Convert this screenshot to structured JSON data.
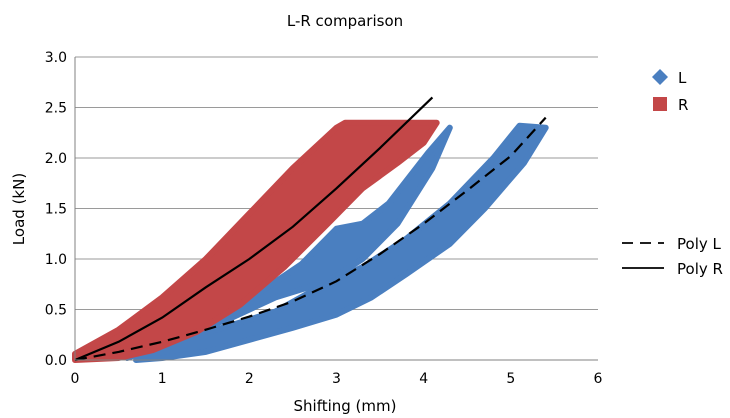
{
  "chart_data": {
    "type": "scatter",
    "title": "L-R comparison",
    "xlabel": "Shifting (mm)",
    "ylabel": "Load (kN)",
    "xlim": [
      0,
      6
    ],
    "ylim": [
      0,
      3
    ],
    "x_ticks": [
      "0",
      "1",
      "2",
      "3",
      "4",
      "5",
      "6"
    ],
    "y_ticks": [
      "0.0",
      "0.5",
      "1.0",
      "1.5",
      "2.0",
      "2.5",
      "3.0"
    ],
    "grid": "horizontal",
    "legend_placement": "right",
    "series": [
      {
        "name": "L",
        "kind": "scatter",
        "marker": "diamond",
        "color": "#4a7fc0",
        "bands": [
          {
            "upper": [
              [
                0.6,
                0.05
              ],
              [
                1.2,
                0.22
              ],
              [
                1.8,
                0.42
              ],
              [
                2.3,
                0.62
              ],
              [
                2.9,
                0.78
              ],
              [
                3.3,
                1.0
              ],
              [
                3.7,
                1.35
              ],
              [
                4.1,
                1.9
              ],
              [
                4.3,
                2.3
              ]
            ],
            "lower": [
              [
                4.3,
                2.3
              ],
              [
                4.05,
                2.05
              ],
              [
                3.6,
                1.55
              ],
              [
                3.3,
                1.35
              ],
              [
                3.0,
                1.3
              ],
              [
                2.6,
                0.95
              ],
              [
                2.0,
                0.6
              ],
              [
                1.5,
                0.38
              ],
              [
                1.0,
                0.15
              ],
              [
                0.6,
                0.02
              ]
            ]
          },
          {
            "upper": [
              [
                1.0,
                0.18
              ],
              [
                1.7,
                0.32
              ],
              [
                2.3,
                0.48
              ],
              [
                2.8,
                0.72
              ],
              [
                3.3,
                0.92
              ],
              [
                3.8,
                1.2
              ],
              [
                4.3,
                1.55
              ],
              [
                4.8,
                2.0
              ],
              [
                5.1,
                2.32
              ],
              [
                5.4,
                2.3
              ]
            ],
            "lower": [
              [
                5.4,
                2.3
              ],
              [
                5.15,
                1.95
              ],
              [
                4.7,
                1.5
              ],
              [
                4.3,
                1.15
              ],
              [
                3.8,
                0.85
              ],
              [
                3.4,
                0.62
              ],
              [
                3.0,
                0.45
              ],
              [
                2.5,
                0.32
              ],
              [
                2.0,
                0.2
              ],
              [
                1.5,
                0.08
              ],
              [
                1.0,
                0.02
              ],
              [
                0.7,
                0.0
              ]
            ]
          }
        ]
      },
      {
        "name": "R",
        "kind": "scatter",
        "marker": "square",
        "color": "#c34748",
        "bands": [
          {
            "upper": [
              [
                0.0,
                0.06
              ],
              [
                0.5,
                0.3
              ],
              [
                1.0,
                0.62
              ],
              [
                1.5,
                1.0
              ],
              [
                2.0,
                1.45
              ],
              [
                2.5,
                1.9
              ],
              [
                3.0,
                2.3
              ],
              [
                3.1,
                2.35
              ],
              [
                4.15,
                2.35
              ]
            ],
            "lower": [
              [
                4.15,
                2.35
              ],
              [
                4.0,
                2.15
              ],
              [
                3.7,
                1.95
              ],
              [
                3.3,
                1.7
              ],
              [
                2.9,
                1.35
              ],
              [
                2.4,
                0.92
              ],
              [
                1.9,
                0.55
              ],
              [
                1.4,
                0.28
              ],
              [
                0.9,
                0.1
              ],
              [
                0.5,
                0.02
              ],
              [
                0.0,
                0.0
              ]
            ]
          }
        ]
      },
      {
        "name": "Poly L",
        "kind": "line",
        "dash": true,
        "color": "#000000",
        "points": [
          [
            0.0,
            0.0
          ],
          [
            0.5,
            0.08
          ],
          [
            1.0,
            0.18
          ],
          [
            1.5,
            0.3
          ],
          [
            2.0,
            0.43
          ],
          [
            2.5,
            0.58
          ],
          [
            3.0,
            0.78
          ],
          [
            3.5,
            1.05
          ],
          [
            4.0,
            1.35
          ],
          [
            4.5,
            1.68
          ],
          [
            5.0,
            2.02
          ],
          [
            5.4,
            2.4
          ]
        ]
      },
      {
        "name": "Poly R",
        "kind": "line",
        "dash": false,
        "color": "#000000",
        "points": [
          [
            0.0,
            0.0
          ],
          [
            0.5,
            0.18
          ],
          [
            1.0,
            0.42
          ],
          [
            1.5,
            0.72
          ],
          [
            2.0,
            1.0
          ],
          [
            2.5,
            1.32
          ],
          [
            3.0,
            1.7
          ],
          [
            3.5,
            2.1
          ],
          [
            4.1,
            2.6
          ]
        ]
      }
    ]
  }
}
